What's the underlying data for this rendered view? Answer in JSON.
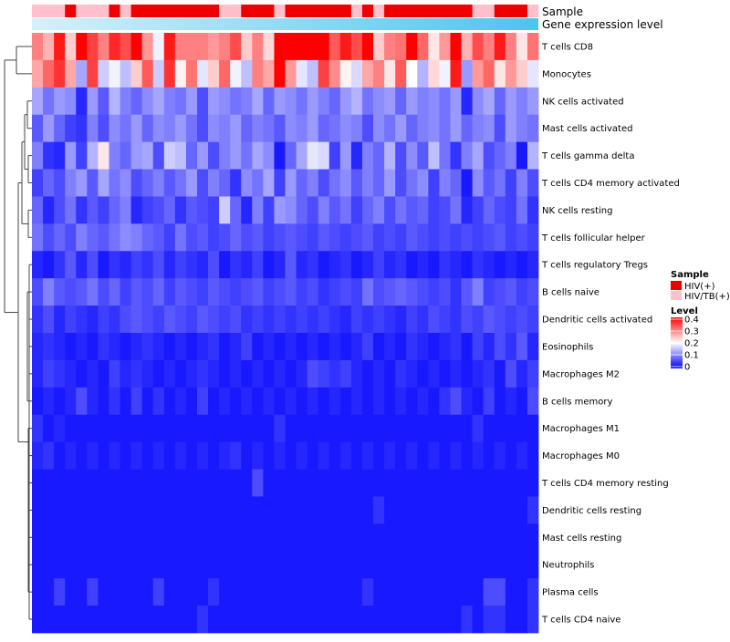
{
  "chart_data": {
    "type": "heatmap",
    "title": "",
    "annotations": {
      "sample_label": "Sample",
      "gene_label": "Gene expression level"
    },
    "rows": [
      "T cells CD8",
      "Monocytes",
      "NK cells activated",
      "Mast cells activated",
      "T cells gamma delta",
      "T cells CD4 memory activated",
      "NK cells resting",
      "T cells follicular helper",
      "T cells regulatory  Tregs",
      "B cells naive",
      "Dendritic cells activated",
      "Eosinophils",
      "Macrophages M2",
      "B cells memory",
      "Macrophages M1",
      "Macrophages M0",
      "T cells CD4 memory resting",
      "Dendritic cells resting",
      "Mast cells resting",
      "Neutrophils",
      "Plasma cells",
      "T cells CD4 naive"
    ],
    "n_samples": 46,
    "sample_groups": [
      "B",
      "B",
      "B",
      "A",
      "B",
      "B",
      "B",
      "A",
      "B",
      "A",
      "A",
      "A",
      "A",
      "A",
      "A",
      "A",
      "A",
      "B",
      "B",
      "A",
      "A",
      "A",
      "B",
      "A",
      "A",
      "A",
      "A",
      "A",
      "A",
      "B",
      "A",
      "B",
      "A",
      "A",
      "A",
      "A",
      "A",
      "A",
      "A",
      "A",
      "B",
      "B",
      "A",
      "A",
      "A",
      "B"
    ],
    "gene_expression_range": [
      0,
      1
    ],
    "legend": {
      "sample_title": "Sample",
      "groups": [
        {
          "key": "A",
          "name": "HIV(+)",
          "color": "#ee0000"
        },
        {
          "key": "B",
          "name": "HIV/TB(+)",
          "color": "#ffc0cb"
        }
      ],
      "level_title": "Level",
      "level_ticks": [
        {
          "value": 0.4,
          "label": "0.4"
        },
        {
          "value": 0.3,
          "label": "0.3"
        },
        {
          "value": 0.2,
          "label": "0.2"
        },
        {
          "value": 0.1,
          "label": "0.1"
        },
        {
          "value": 0.0,
          "label": "0"
        }
      ]
    },
    "color_scale": {
      "min": 0,
      "mid": 0.2,
      "max": 0.4,
      "low_color": "#0000ff",
      "mid_color": "#ffffff",
      "high_color": "#ff0000"
    },
    "row_levels": {
      "T cells CD8": [
        0.3,
        0.26,
        0.38,
        0.24,
        0.4,
        0.35,
        0.3,
        0.37,
        0.34,
        0.4,
        0.28,
        0.19,
        0.38,
        0.3,
        0.3,
        0.3,
        0.28,
        0.3,
        0.34,
        0.24,
        0.3,
        0.23,
        0.4,
        0.4,
        0.4,
        0.4,
        0.4,
        0.33,
        0.38,
        0.34,
        0.4,
        0.24,
        0.3,
        0.31,
        0.4,
        0.32,
        0.22,
        0.28,
        0.4,
        0.26,
        0.34,
        0.3,
        0.38,
        0.3,
        0.22,
        0.31
      ],
      "Monocytes": [
        0.27,
        0.32,
        0.36,
        0.27,
        0.13,
        0.35,
        0.16,
        0.19,
        0.15,
        0.24,
        0.33,
        0.16,
        0.36,
        0.21,
        0.31,
        0.18,
        0.24,
        0.32,
        0.19,
        0.15,
        0.3,
        0.27,
        0.4,
        0.28,
        0.18,
        0.15,
        0.35,
        0.29,
        0.21,
        0.17,
        0.27,
        0.3,
        0.22,
        0.33,
        0.2,
        0.14,
        0.23,
        0.19,
        0.38,
        0.12,
        0.28,
        0.32,
        0.22,
        0.28,
        0.24,
        0.18
      ],
      "NK cells activated": [
        0.13,
        0.09,
        0.12,
        0.11,
        0.03,
        0.12,
        0.07,
        0.14,
        0.1,
        0.08,
        0.11,
        0.13,
        0.1,
        0.09,
        0.12,
        0.06,
        0.12,
        0.11,
        0.09,
        0.1,
        0.13,
        0.08,
        0.12,
        0.11,
        0.09,
        0.12,
        0.1,
        0.08,
        0.12,
        0.14,
        0.09,
        0.11,
        0.12,
        0.08,
        0.12,
        0.1,
        0.11,
        0.09,
        0.12,
        0.03,
        0.11,
        0.13,
        0.08,
        0.12,
        0.1,
        0.12
      ],
      "Mast cells activated": [
        0.07,
        0.12,
        0.08,
        0.05,
        0.04,
        0.1,
        0.06,
        0.11,
        0.09,
        0.12,
        0.08,
        0.11,
        0.1,
        0.12,
        0.09,
        0.06,
        0.11,
        0.1,
        0.12,
        0.08,
        0.1,
        0.09,
        0.07,
        0.11,
        0.1,
        0.12,
        0.08,
        0.09,
        0.11,
        0.1,
        0.06,
        0.11,
        0.09,
        0.12,
        0.08,
        0.1,
        0.11,
        0.09,
        0.12,
        0.08,
        0.1,
        0.11,
        0.06,
        0.12,
        0.1,
        0.09
      ],
      "T cells gamma delta": [
        0.1,
        0.04,
        0.03,
        0.12,
        0.05,
        0.14,
        0.22,
        0.1,
        0.08,
        0.12,
        0.13,
        0.06,
        0.16,
        0.15,
        0.08,
        0.12,
        0.06,
        0.1,
        0.12,
        0.09,
        0.13,
        0.11,
        0.02,
        0.08,
        0.13,
        0.18,
        0.17,
        0.05,
        0.12,
        0.03,
        0.1,
        0.08,
        0.14,
        0.06,
        0.11,
        0.07,
        0.15,
        0.09,
        0.04,
        0.1,
        0.13,
        0.06,
        0.08,
        0.1,
        0.02,
        0.14
      ],
      "T cells CD4 memory activated": [
        0.05,
        0.08,
        0.06,
        0.1,
        0.12,
        0.07,
        0.13,
        0.09,
        0.11,
        0.06,
        0.08,
        0.1,
        0.07,
        0.09,
        0.12,
        0.06,
        0.1,
        0.08,
        0.04,
        0.11,
        0.09,
        0.13,
        0.05,
        0.12,
        0.08,
        0.1,
        0.06,
        0.09,
        0.11,
        0.07,
        0.1,
        0.08,
        0.12,
        0.06,
        0.09,
        0.11,
        0.05,
        0.1,
        0.08,
        0.02,
        0.11,
        0.07,
        0.09,
        0.05,
        0.1,
        0.06
      ],
      "NK cells resting": [
        0.08,
        0.03,
        0.06,
        0.09,
        0.04,
        0.07,
        0.05,
        0.08,
        0.1,
        0.03,
        0.05,
        0.06,
        0.08,
        0.04,
        0.07,
        0.06,
        0.05,
        0.16,
        0.08,
        0.03,
        0.1,
        0.05,
        0.12,
        0.11,
        0.08,
        0.06,
        0.1,
        0.07,
        0.09,
        0.05,
        0.08,
        0.1,
        0.06,
        0.09,
        0.07,
        0.08,
        0.05,
        0.06,
        0.09,
        0.03,
        0.05,
        0.08,
        0.06,
        0.05,
        0.09,
        0.04
      ],
      "T cells follicular helper": [
        0.09,
        0.06,
        0.08,
        0.06,
        0.1,
        0.08,
        0.07,
        0.09,
        0.11,
        0.1,
        0.08,
        0.07,
        0.05,
        0.09,
        0.06,
        0.07,
        0.05,
        0.06,
        0.08,
        0.06,
        0.07,
        0.05,
        0.06,
        0.07,
        0.06,
        0.05,
        0.07,
        0.06,
        0.05,
        0.06,
        0.07,
        0.05,
        0.06,
        0.05,
        0.07,
        0.06,
        0.05,
        0.06,
        0.05,
        0.06,
        0.05,
        0.06,
        0.07,
        0.05,
        0.06,
        0.05
      ],
      "T cells regulatory  Tregs": [
        0.03,
        0.02,
        0.04,
        0.07,
        0.03,
        0.06,
        0.02,
        0.04,
        0.03,
        0.05,
        0.04,
        0.06,
        0.03,
        0.05,
        0.04,
        0.03,
        0.06,
        0.02,
        0.04,
        0.03,
        0.05,
        0.02,
        0.03,
        0.07,
        0.03,
        0.04,
        0.02,
        0.03,
        0.04,
        0.02,
        0.03,
        0.05,
        0.03,
        0.04,
        0.02,
        0.03,
        0.02,
        0.04,
        0.03,
        0.02,
        0.04,
        0.03,
        0.02,
        0.03,
        0.02,
        0.03
      ],
      "B cells naive": [
        0.06,
        0.1,
        0.07,
        0.06,
        0.07,
        0.09,
        0.06,
        0.08,
        0.05,
        0.07,
        0.06,
        0.08,
        0.05,
        0.07,
        0.06,
        0.05,
        0.07,
        0.06,
        0.05,
        0.06,
        0.07,
        0.05,
        0.06,
        0.07,
        0.05,
        0.06,
        0.04,
        0.05,
        0.06,
        0.05,
        0.09,
        0.06,
        0.07,
        0.08,
        0.07,
        0.06,
        0.05,
        0.06,
        0.04,
        0.07,
        0.1,
        0.05,
        0.06,
        0.07,
        0.05,
        0.06
      ],
      "Dendritic cells activated": [
        0.04,
        0.06,
        0.03,
        0.05,
        0.04,
        0.03,
        0.05,
        0.04,
        0.06,
        0.07,
        0.06,
        0.05,
        0.07,
        0.06,
        0.05,
        0.07,
        0.06,
        0.05,
        0.06,
        0.04,
        0.05,
        0.04,
        0.05,
        0.04,
        0.05,
        0.04,
        0.05,
        0.04,
        0.03,
        0.05,
        0.04,
        0.05,
        0.04,
        0.03,
        0.05,
        0.04,
        0.06,
        0.05,
        0.04,
        0.06,
        0.05,
        0.07,
        0.06,
        0.05,
        0.06,
        0.05
      ],
      "Eosinophils": [
        0.03,
        0.04,
        0.03,
        0.02,
        0.03,
        0.02,
        0.04,
        0.03,
        0.02,
        0.03,
        0.04,
        0.03,
        0.02,
        0.03,
        0.02,
        0.03,
        0.04,
        0.02,
        0.03,
        0.05,
        0.02,
        0.03,
        0.02,
        0.03,
        0.02,
        0.03,
        0.02,
        0.03,
        0.02,
        0.03,
        0.05,
        0.02,
        0.03,
        0.02,
        0.04,
        0.03,
        0.02,
        0.03,
        0.04,
        0.02,
        0.05,
        0.03,
        0.06,
        0.04,
        0.07,
        0.03
      ],
      "Macrophages M2": [
        0.03,
        0.05,
        0.04,
        0.03,
        0.02,
        0.03,
        0.02,
        0.05,
        0.03,
        0.04,
        0.03,
        0.02,
        0.03,
        0.02,
        0.03,
        0.04,
        0.03,
        0.02,
        0.03,
        0.02,
        0.03,
        0.02,
        0.03,
        0.02,
        0.03,
        0.06,
        0.05,
        0.04,
        0.05,
        0.03,
        0.02,
        0.03,
        0.02,
        0.04,
        0.03,
        0.02,
        0.03,
        0.02,
        0.03,
        0.02,
        0.03,
        0.04,
        0.02,
        0.06,
        0.03,
        0.05
      ],
      "B cells memory": [
        0.02,
        0.03,
        0.02,
        0.03,
        0.06,
        0.03,
        0.02,
        0.04,
        0.02,
        0.05,
        0.02,
        0.04,
        0.02,
        0.03,
        0.02,
        0.05,
        0.02,
        0.03,
        0.02,
        0.03,
        0.02,
        0.03,
        0.02,
        0.03,
        0.02,
        0.03,
        0.02,
        0.03,
        0.02,
        0.03,
        0.02,
        0.03,
        0.02,
        0.03,
        0.02,
        0.03,
        0.02,
        0.04,
        0.06,
        0.03,
        0.02,
        0.05,
        0.02,
        0.03,
        0.02,
        0.06
      ],
      "Macrophages M1": [
        0.04,
        0.02,
        0.03,
        0.02,
        0.02,
        0.02,
        0.02,
        0.02,
        0.02,
        0.02,
        0.02,
        0.02,
        0.02,
        0.02,
        0.02,
        0.02,
        0.02,
        0.02,
        0.02,
        0.02,
        0.02,
        0.02,
        0.04,
        0.02,
        0.02,
        0.02,
        0.02,
        0.02,
        0.02,
        0.02,
        0.02,
        0.02,
        0.02,
        0.02,
        0.02,
        0.02,
        0.02,
        0.02,
        0.02,
        0.02,
        0.04,
        0.02,
        0.02,
        0.02,
        0.02,
        0.02
      ],
      "Macrophages M0": [
        0.03,
        0.04,
        0.02,
        0.03,
        0.02,
        0.03,
        0.02,
        0.03,
        0.02,
        0.03,
        0.02,
        0.03,
        0.02,
        0.03,
        0.02,
        0.03,
        0.02,
        0.03,
        0.04,
        0.02,
        0.03,
        0.02,
        0.03,
        0.02,
        0.03,
        0.02,
        0.03,
        0.02,
        0.03,
        0.02,
        0.03,
        0.02,
        0.03,
        0.02,
        0.03,
        0.02,
        0.03,
        0.02,
        0.03,
        0.02,
        0.03,
        0.02,
        0.03,
        0.02,
        0.03,
        0.02
      ],
      "T cells CD4 memory resting": [
        0.02,
        0.02,
        0.02,
        0.02,
        0.02,
        0.02,
        0.02,
        0.02,
        0.02,
        0.02,
        0.02,
        0.02,
        0.02,
        0.02,
        0.02,
        0.02,
        0.02,
        0.02,
        0.02,
        0.02,
        0.06,
        0.02,
        0.02,
        0.02,
        0.02,
        0.02,
        0.02,
        0.02,
        0.02,
        0.02,
        0.02,
        0.02,
        0.02,
        0.02,
        0.02,
        0.02,
        0.02,
        0.02,
        0.02,
        0.02,
        0.02,
        0.02,
        0.02,
        0.02,
        0.02,
        0.02
      ],
      "Dendritic cells resting": [
        0.02,
        0.02,
        0.02,
        0.02,
        0.02,
        0.02,
        0.02,
        0.02,
        0.02,
        0.02,
        0.02,
        0.02,
        0.02,
        0.02,
        0.02,
        0.02,
        0.02,
        0.02,
        0.02,
        0.02,
        0.02,
        0.02,
        0.02,
        0.02,
        0.02,
        0.02,
        0.02,
        0.02,
        0.02,
        0.02,
        0.02,
        0.04,
        0.02,
        0.02,
        0.02,
        0.02,
        0.02,
        0.02,
        0.02,
        0.02,
        0.02,
        0.02,
        0.02,
        0.02,
        0.02,
        0.04
      ],
      "Mast cells resting": [
        0.02,
        0.02,
        0.02,
        0.02,
        0.02,
        0.02,
        0.02,
        0.02,
        0.02,
        0.02,
        0.02,
        0.02,
        0.02,
        0.02,
        0.02,
        0.02,
        0.02,
        0.02,
        0.02,
        0.02,
        0.02,
        0.02,
        0.02,
        0.02,
        0.02,
        0.02,
        0.02,
        0.02,
        0.02,
        0.02,
        0.02,
        0.02,
        0.02,
        0.02,
        0.02,
        0.02,
        0.02,
        0.02,
        0.02,
        0.02,
        0.02,
        0.02,
        0.02,
        0.02,
        0.02,
        0.02
      ],
      "Neutrophils": [
        0.02,
        0.02,
        0.02,
        0.02,
        0.02,
        0.02,
        0.02,
        0.02,
        0.02,
        0.02,
        0.02,
        0.02,
        0.02,
        0.02,
        0.02,
        0.02,
        0.02,
        0.02,
        0.02,
        0.02,
        0.02,
        0.02,
        0.02,
        0.02,
        0.02,
        0.02,
        0.02,
        0.02,
        0.02,
        0.02,
        0.02,
        0.02,
        0.02,
        0.02,
        0.02,
        0.02,
        0.02,
        0.02,
        0.02,
        0.02,
        0.02,
        0.02,
        0.02,
        0.02,
        0.02,
        0.02
      ],
      "Plasma cells": [
        0.02,
        0.02,
        0.05,
        0.02,
        0.02,
        0.05,
        0.02,
        0.02,
        0.02,
        0.02,
        0.02,
        0.05,
        0.02,
        0.02,
        0.02,
        0.02,
        0.04,
        0.02,
        0.02,
        0.02,
        0.02,
        0.02,
        0.02,
        0.02,
        0.02,
        0.02,
        0.02,
        0.02,
        0.02,
        0.02,
        0.04,
        0.02,
        0.02,
        0.02,
        0.02,
        0.02,
        0.02,
        0.02,
        0.02,
        0.02,
        0.02,
        0.06,
        0.06,
        0.02,
        0.02,
        0.04
      ],
      "T cells CD4 naive": [
        0.02,
        0.02,
        0.02,
        0.02,
        0.02,
        0.02,
        0.02,
        0.02,
        0.02,
        0.02,
        0.02,
        0.02,
        0.02,
        0.02,
        0.02,
        0.04,
        0.02,
        0.02,
        0.02,
        0.02,
        0.02,
        0.02,
        0.02,
        0.02,
        0.02,
        0.02,
        0.02,
        0.02,
        0.02,
        0.02,
        0.02,
        0.02,
        0.02,
        0.02,
        0.02,
        0.02,
        0.02,
        0.02,
        0.02,
        0.04,
        0.02,
        0.04,
        0.04,
        0.02,
        0.02,
        0.04
      ]
    }
  }
}
